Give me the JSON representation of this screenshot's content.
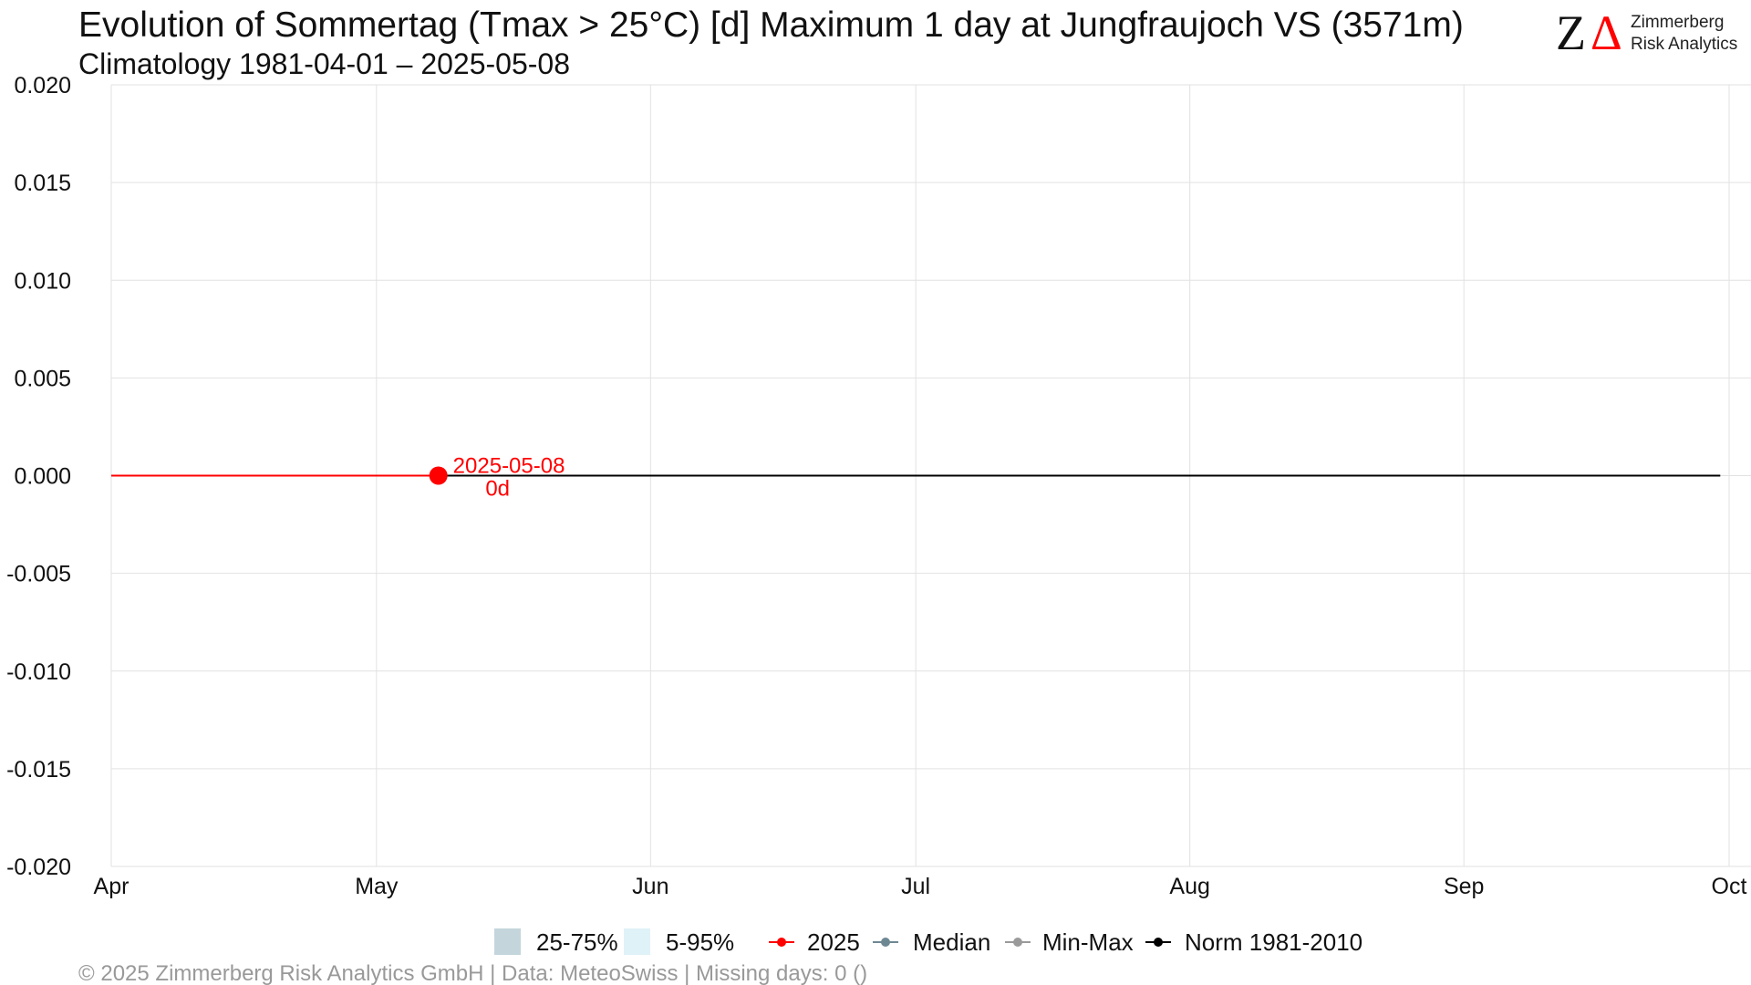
{
  "header": {
    "title": "Evolution of Sommertag (Tmax > 25°C) [d] Maximum 1 day at Jungfraujoch  VS (3571m)",
    "subtitle": "Climatology 1981-04-01 – 2025-05-08"
  },
  "logo": {
    "letter_z": "Z",
    "letter_delta": "Δ",
    "line1": "Zimmerberg",
    "line2": "Risk Analytics"
  },
  "footer": {
    "text": "©  2025 Zimmerberg Risk Analytics GmbH | Data: MeteoSwiss | Missing days: 0 ()"
  },
  "chart_data": {
    "type": "line",
    "title": "Evolution of Sommertag (Tmax > 25°C) [d] Maximum 1 day at Jungfraujoch  VS (3571m)",
    "ylim": [
      -0.02,
      0.02
    ],
    "y_ticks": [
      "0.020",
      "0.015",
      "0.010",
      "0.005",
      "0.000",
      "-0.005",
      "-0.010",
      "-0.015",
      "-0.020"
    ],
    "x_range": [
      "04-01",
      "10-01"
    ],
    "x_ticks": [
      {
        "label": "Apr",
        "date": "04-01"
      },
      {
        "label": "May",
        "date": "05-01"
      },
      {
        "label": "Jun",
        "date": "06-01"
      },
      {
        "label": "Jul",
        "date": "07-01"
      },
      {
        "label": "Aug",
        "date": "08-01"
      },
      {
        "label": "Sep",
        "date": "09-01"
      },
      {
        "label": "Oct",
        "date": "10-01"
      }
    ],
    "grid": true,
    "series": [
      {
        "name": "Norm 1981-2010",
        "color": "#000000",
        "x": [
          "04-01",
          "09-30"
        ],
        "values": [
          0,
          0
        ]
      },
      {
        "name": "2025",
        "color": "#ff0000",
        "x": [
          "04-01",
          "05-08"
        ],
        "values": [
          0,
          0
        ]
      }
    ],
    "current_point": {
      "date": "05-08",
      "value": 0,
      "label_date": "2025-05-08",
      "label_value": "0d",
      "color": "#ff0000"
    },
    "legend": {
      "placement": "bottom",
      "items": [
        {
          "label": "25-75%",
          "kind": "band",
          "color": "#c4d6dc"
        },
        {
          "label": "5-95%",
          "kind": "band",
          "color": "#dff2f8"
        },
        {
          "label": "2025",
          "kind": "line",
          "color": "#ff0000"
        },
        {
          "label": "Median",
          "kind": "line",
          "color": "#6e8893"
        },
        {
          "label": "Min-Max",
          "kind": "line",
          "color": "#9a9a9a"
        },
        {
          "label": "Norm 1981-2010",
          "kind": "line",
          "color": "#000000"
        }
      ]
    }
  }
}
